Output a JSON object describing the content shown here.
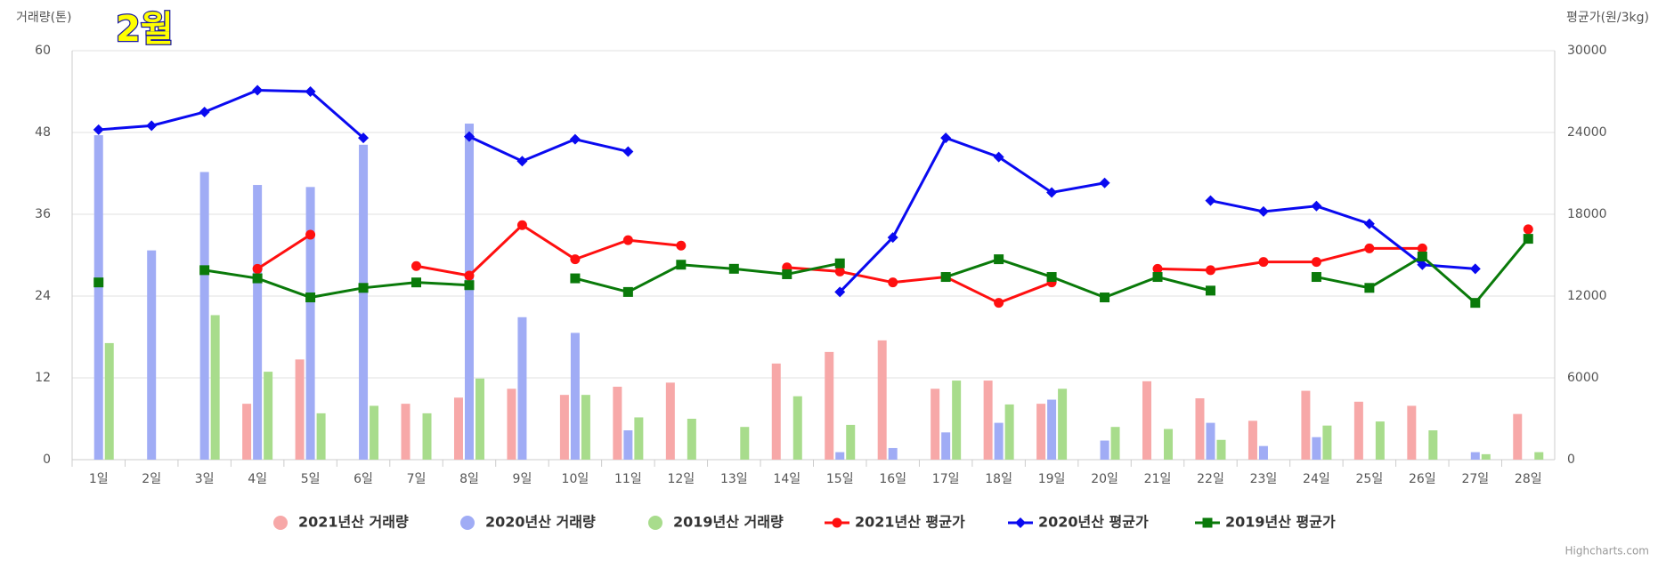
{
  "chart_data": {
    "type": "bar",
    "y_title": "거래량(톤)",
    "title": "2월",
    "y2_title": "평균가(원/3kg)",
    "credit": "Highcharts.com",
    "categories": [
      "1일",
      "2일",
      "3일",
      "4일",
      "5일",
      "6일",
      "7일",
      "8일",
      "9일",
      "10일",
      "11일",
      "12일",
      "13일",
      "14일",
      "15일",
      "16일",
      "17일",
      "18일",
      "19일",
      "20일",
      "21일",
      "22일",
      "23일",
      "24일",
      "25일",
      "26일",
      "27일",
      "28일"
    ],
    "ylim": [
      0,
      60
    ],
    "yticks": [
      0,
      12,
      24,
      36,
      48,
      60
    ],
    "y2lim": [
      0,
      30000
    ],
    "y2ticks": [
      0,
      6000,
      12000,
      18000,
      24000,
      30000
    ],
    "grid": true,
    "legend": "bottom",
    "series": [
      {
        "name": "2021년산 거래량",
        "type": "bar",
        "color": "#f7a8a8",
        "values": [
          null,
          null,
          null,
          8.2,
          14.7,
          null,
          8.2,
          9.1,
          10.4,
          9.5,
          10.7,
          11.3,
          null,
          14.1,
          15.8,
          17.5,
          10.4,
          11.6,
          8.2,
          null,
          11.5,
          9.0,
          5.7,
          10.1,
          8.5,
          7.9,
          null,
          6.7
        ]
      },
      {
        "name": "2020년산 거래량",
        "type": "bar",
        "color": "#a0acf5",
        "values": [
          47.6,
          30.7,
          42.2,
          40.3,
          40.0,
          46.2,
          null,
          49.3,
          20.9,
          18.6,
          4.3,
          null,
          null,
          null,
          1.1,
          1.7,
          4.0,
          5.4,
          8.8,
          2.8,
          null,
          5.4,
          2.0,
          3.3,
          null,
          null,
          1.1,
          null
        ]
      },
      {
        "name": "2019년산 거래량",
        "type": "bar",
        "color": "#a8dc8c",
        "values": [
          17.1,
          null,
          21.2,
          12.9,
          6.8,
          7.9,
          6.8,
          11.9,
          null,
          9.5,
          6.2,
          6.0,
          4.8,
          9.3,
          5.1,
          null,
          11.6,
          8.1,
          10.4,
          4.8,
          4.5,
          2.9,
          null,
          5.0,
          5.6,
          4.3,
          0.8,
          1.1
        ]
      },
      {
        "name": "2021년산 평균가",
        "type": "line",
        "axis": "y2",
        "marker": "circle",
        "color": "#ff1010",
        "values": [
          null,
          null,
          null,
          14000,
          16500,
          null,
          14200,
          13500,
          17200,
          14700,
          16100,
          15700,
          null,
          14100,
          13800,
          13000,
          13400,
          11500,
          13000,
          null,
          14000,
          13900,
          14500,
          14500,
          15500,
          15500,
          null,
          16900
        ]
      },
      {
        "name": "2020년산 평균가",
        "type": "line",
        "axis": "y2",
        "marker": "diamond",
        "color": "#0a0af0",
        "values": [
          24200,
          24500,
          25500,
          27100,
          27000,
          23600,
          null,
          23700,
          21900,
          23500,
          22600,
          null,
          null,
          null,
          12300,
          16300,
          23600,
          22200,
          19600,
          20300,
          null,
          19000,
          18200,
          18600,
          17300,
          14300,
          14000,
          null
        ]
      },
      {
        "name": "2019년산 평균가",
        "type": "line",
        "axis": "y2",
        "marker": "square",
        "color": "#0a7a0a",
        "values": [
          13000,
          null,
          13900,
          13300,
          11900,
          12600,
          13000,
          12800,
          null,
          13300,
          12300,
          14300,
          14000,
          13600,
          14400,
          null,
          13400,
          14700,
          13400,
          11900,
          13400,
          12400,
          null,
          13400,
          12600,
          14900,
          11500,
          16200
        ]
      }
    ]
  }
}
